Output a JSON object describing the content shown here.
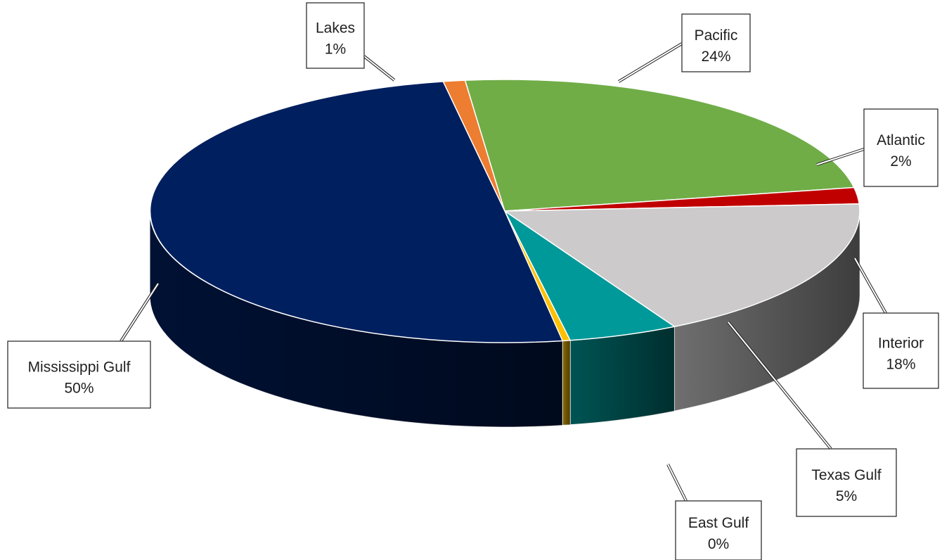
{
  "chart_data": {
    "type": "pie",
    "title": "",
    "slices": [
      {
        "label": "Lakes",
        "value": 1,
        "value_label": "1%",
        "color": "#ED7D31"
      },
      {
        "label": "Pacific",
        "value": 24,
        "value_label": "24%",
        "color": "#70AD47"
      },
      {
        "label": "Atlantic",
        "value": 2,
        "value_label": "2%",
        "color": "#C00000"
      },
      {
        "label": "Interior",
        "value": 18,
        "value_label": "18%",
        "color": "#CCCACB"
      },
      {
        "label": "Texas Gulf",
        "value": 5,
        "value_label": "5%",
        "color": "#009999"
      },
      {
        "label": "East Gulf",
        "value": 0,
        "value_label": "0%",
        "color": "#FFC000"
      },
      {
        "label": "Mississippi Gulf",
        "value": 50,
        "value_label": "50%",
        "color": "#001F5E"
      }
    ],
    "style": "3d-exploded-none",
    "legend": "none",
    "data_labels": "callouts"
  }
}
